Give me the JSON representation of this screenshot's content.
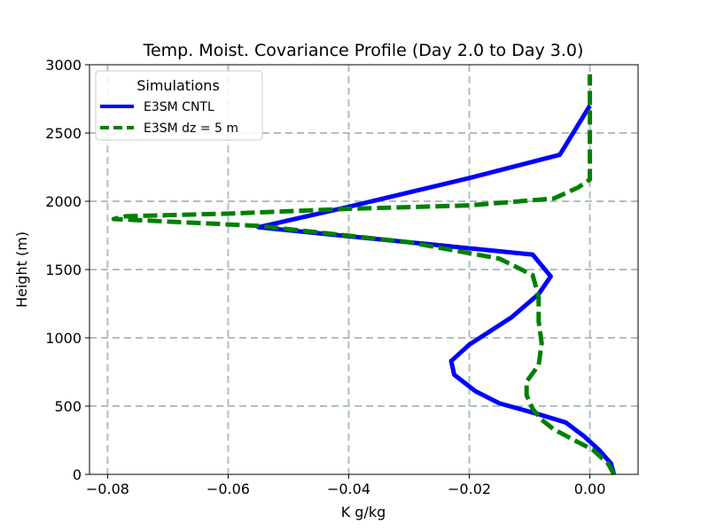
{
  "chart_data": {
    "type": "line",
    "title": "Temp. Moist. Covariance Profile (Day 2.0 to Day 3.0)",
    "xlabel": "K g/kg",
    "ylabel": "Height (m)",
    "xlim": [
      -0.083,
      0.008
    ],
    "ylim": [
      0,
      3000
    ],
    "xticks": [
      -0.08,
      -0.06,
      -0.04,
      -0.02,
      0.0
    ],
    "xtick_labels": [
      "−0.08",
      "−0.06",
      "−0.04",
      "−0.02",
      "0.00"
    ],
    "yticks": [
      0,
      500,
      1000,
      1500,
      2000,
      2500,
      3000
    ],
    "ytick_labels": [
      "0",
      "500",
      "1000",
      "1500",
      "2000",
      "2500",
      "3000"
    ],
    "grid": true,
    "legend": {
      "title": "Simulations",
      "location": "top-left"
    },
    "series": [
      {
        "name": "E3SM CNTL",
        "color": "#0000ff",
        "style": "solid",
        "points": [
          [
            0.004,
            0
          ],
          [
            0.0035,
            80
          ],
          [
            0.0015,
            180
          ],
          [
            -0.001,
            280
          ],
          [
            -0.004,
            380
          ],
          [
            -0.0085,
            440
          ],
          [
            -0.015,
            520
          ],
          [
            -0.019,
            610
          ],
          [
            -0.0225,
            730
          ],
          [
            -0.023,
            830
          ],
          [
            -0.02,
            950
          ],
          [
            -0.013,
            1150
          ],
          [
            -0.0085,
            1320
          ],
          [
            -0.0065,
            1450
          ],
          [
            -0.0095,
            1610
          ],
          [
            -0.055,
            1810
          ],
          [
            -0.04,
            1960
          ],
          [
            -0.02,
            2170
          ],
          [
            -0.005,
            2340
          ],
          [
            0.0,
            2700
          ]
        ]
      },
      {
        "name": "E3SM dz = 5 m",
        "color": "#008000",
        "style": "dashed",
        "points": [
          [
            0.004,
            0
          ],
          [
            0.003,
            80
          ],
          [
            0.0005,
            180
          ],
          [
            -0.003,
            260
          ],
          [
            -0.006,
            330
          ],
          [
            -0.008,
            400
          ],
          [
            -0.0095,
            480
          ],
          [
            -0.0105,
            580
          ],
          [
            -0.0105,
            680
          ],
          [
            -0.0085,
            800
          ],
          [
            -0.008,
            960
          ],
          [
            -0.0085,
            1120
          ],
          [
            -0.0085,
            1300
          ],
          [
            -0.0095,
            1460
          ],
          [
            -0.015,
            1580
          ],
          [
            -0.03,
            1700
          ],
          [
            -0.055,
            1820
          ],
          [
            -0.079,
            1870
          ],
          [
            -0.077,
            1890
          ],
          [
            -0.06,
            1910
          ],
          [
            -0.04,
            1945
          ],
          [
            -0.02,
            1970
          ],
          [
            -0.006,
            2020
          ],
          [
            -0.002,
            2100
          ],
          [
            0.0,
            2160
          ],
          [
            0.0,
            2500
          ],
          [
            0.0,
            2930
          ]
        ]
      }
    ]
  }
}
